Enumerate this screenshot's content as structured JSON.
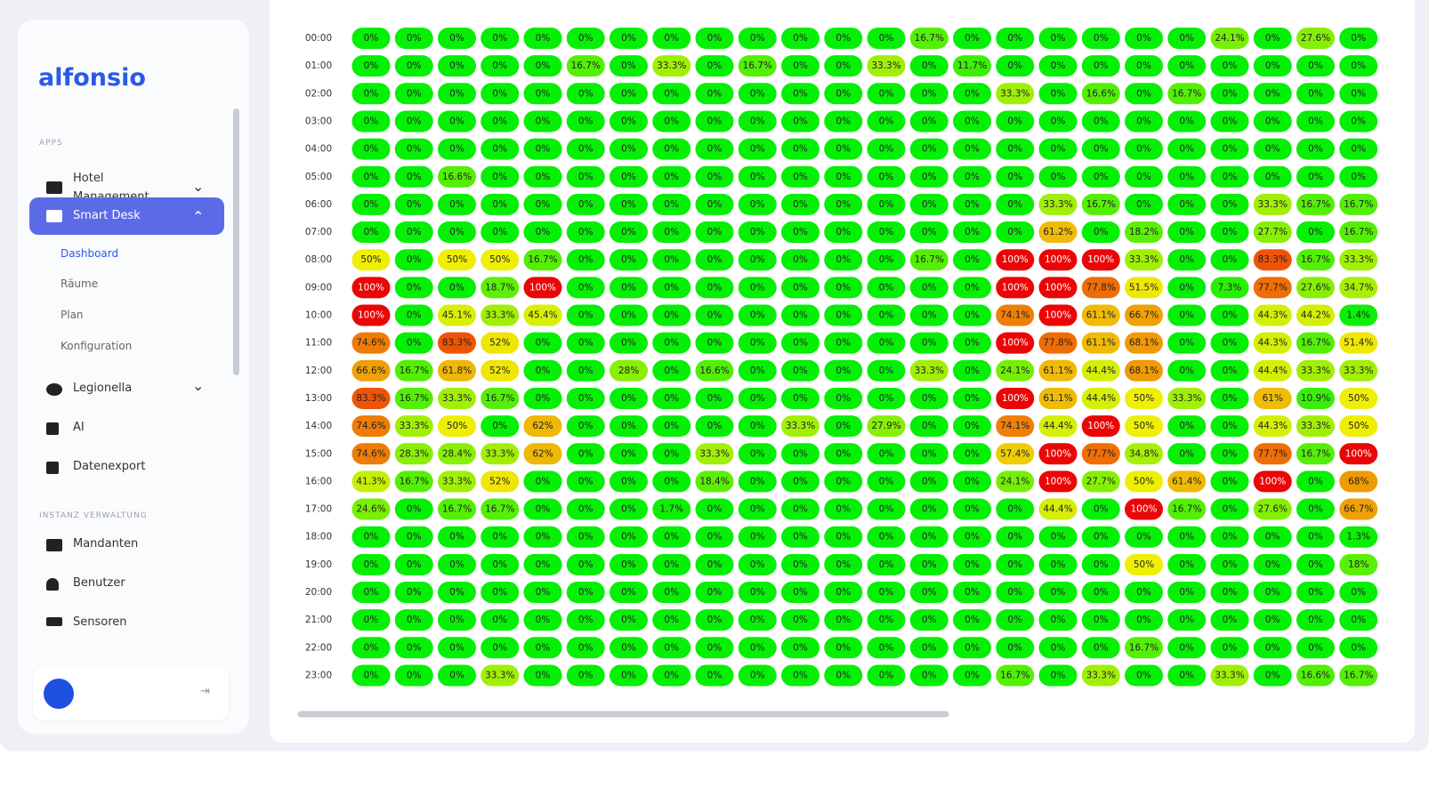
{
  "sidebar": {
    "logo": "alfonsio",
    "apps_heading": "APPS",
    "items": [
      "Hotel Management",
      "Smart Desk",
      "Legionella",
      "AI",
      "Datenexport"
    ],
    "submenu": [
      "Dashboard",
      "Räume",
      "Plan",
      "Konfiguration"
    ],
    "admin_heading": "INSTANZ VERWALTUNG",
    "admin_items": [
      "Mandanten",
      "Benutzer",
      "Sensoren"
    ]
  },
  "heatmap": {
    "hours": [
      "00:00",
      "01:00",
      "02:00",
      "03:00",
      "04:00",
      "05:00",
      "06:00",
      "07:00",
      "08:00",
      "09:00",
      "10:00",
      "11:00",
      "12:00",
      "13:00",
      "14:00",
      "15:00",
      "16:00",
      "17:00",
      "18:00",
      "19:00",
      "20:00",
      "21:00",
      "22:00",
      "23:00"
    ],
    "cells": [
      [
        "0%",
        "0%",
        "0%",
        "0%",
        "0%",
        "0%",
        "0%",
        "0%",
        "0%",
        "0%",
        "0%",
        "0%",
        "0%",
        "16.7%",
        "0%",
        "0%",
        "0%",
        "0%",
        "0%",
        "0%",
        "24.1%",
        "0%",
        "27.6%",
        "0%"
      ],
      [
        "0%",
        "0%",
        "0%",
        "0%",
        "0%",
        "16.7%",
        "0%",
        "33.3%",
        "0%",
        "16.7%",
        "0%",
        "0%",
        "33.3%",
        "0%",
        "11.7%",
        "0%",
        "0%",
        "0%",
        "0%",
        "0%",
        "0%",
        "0%",
        "0%",
        "0%"
      ],
      [
        "0%",
        "0%",
        "0%",
        "0%",
        "0%",
        "0%",
        "0%",
        "0%",
        "0%",
        "0%",
        "0%",
        "0%",
        "0%",
        "0%",
        "0%",
        "33.3%",
        "0%",
        "16.6%",
        "0%",
        "16.7%",
        "0%",
        "0%",
        "0%",
        "0%"
      ],
      [
        "0%",
        "0%",
        "0%",
        "0%",
        "0%",
        "0%",
        "0%",
        "0%",
        "0%",
        "0%",
        "0%",
        "0%",
        "0%",
        "0%",
        "0%",
        "0%",
        "0%",
        "0%",
        "0%",
        "0%",
        "0%",
        "0%",
        "0%",
        "0%"
      ],
      [
        "0%",
        "0%",
        "0%",
        "0%",
        "0%",
        "0%",
        "0%",
        "0%",
        "0%",
        "0%",
        "0%",
        "0%",
        "0%",
        "0%",
        "0%",
        "0%",
        "0%",
        "0%",
        "0%",
        "0%",
        "0%",
        "0%",
        "0%",
        "0%"
      ],
      [
        "0%",
        "0%",
        "16.6%",
        "0%",
        "0%",
        "0%",
        "0%",
        "0%",
        "0%",
        "0%",
        "0%",
        "0%",
        "0%",
        "0%",
        "0%",
        "0%",
        "0%",
        "0%",
        "0%",
        "0%",
        "0%",
        "0%",
        "0%",
        "0%"
      ],
      [
        "0%",
        "0%",
        "0%",
        "0%",
        "0%",
        "0%",
        "0%",
        "0%",
        "0%",
        "0%",
        "0%",
        "0%",
        "0%",
        "0%",
        "0%",
        "0%",
        "33.3%",
        "16.7%",
        "0%",
        "0%",
        "0%",
        "33.3%",
        "16.7%",
        "16.7%"
      ],
      [
        "0%",
        "0%",
        "0%",
        "0%",
        "0%",
        "0%",
        "0%",
        "0%",
        "0%",
        "0%",
        "0%",
        "0%",
        "0%",
        "0%",
        "0%",
        "0%",
        "61.2%",
        "0%",
        "18.2%",
        "0%",
        "0%",
        "27.7%",
        "0%",
        "16.7%"
      ],
      [
        "50%",
        "0%",
        "50%",
        "50%",
        "16.7%",
        "0%",
        "0%",
        "0%",
        "0%",
        "0%",
        "0%",
        "0%",
        "0%",
        "16.7%",
        "0%",
        "100%",
        "100%",
        "100%",
        "33.3%",
        "0%",
        "0%",
        "83.3%",
        "16.7%",
        "33.3%"
      ],
      [
        "100%",
        "0%",
        "0%",
        "18.7%",
        "100%",
        "0%",
        "0%",
        "0%",
        "0%",
        "0%",
        "0%",
        "0%",
        "0%",
        "0%",
        "0%",
        "100%",
        "100%",
        "77.8%",
        "51.5%",
        "0%",
        "7.3%",
        "77.7%",
        "27.6%",
        "34.7%"
      ],
      [
        "100%",
        "0%",
        "45.1%",
        "33.3%",
        "45.4%",
        "0%",
        "0%",
        "0%",
        "0%",
        "0%",
        "0%",
        "0%",
        "0%",
        "0%",
        "0%",
        "74.1%",
        "100%",
        "61.1%",
        "66.7%",
        "0%",
        "0%",
        "44.3%",
        "44.2%",
        "1.4%"
      ],
      [
        "74.6%",
        "0%",
        "83.3%",
        "52%",
        "0%",
        "0%",
        "0%",
        "0%",
        "0%",
        "0%",
        "0%",
        "0%",
        "0%",
        "0%",
        "0%",
        "100%",
        "77.8%",
        "61.1%",
        "68.1%",
        "0%",
        "0%",
        "44.3%",
        "16.7%",
        "51.4%"
      ],
      [
        "66.6%",
        "16.7%",
        "61.8%",
        "52%",
        "0%",
        "0%",
        "28%",
        "0%",
        "16.6%",
        "0%",
        "0%",
        "0%",
        "0%",
        "33.3%",
        "0%",
        "24.1%",
        "61.1%",
        "44.4%",
        "68.1%",
        "0%",
        "0%",
        "44.4%",
        "33.3%",
        "33.3%"
      ],
      [
        "83.3%",
        "16.7%",
        "33.3%",
        "16.7%",
        "0%",
        "0%",
        "0%",
        "0%",
        "0%",
        "0%",
        "0%",
        "0%",
        "0%",
        "0%",
        "0%",
        "100%",
        "61.1%",
        "44.4%",
        "50%",
        "33.3%",
        "0%",
        "61%",
        "10.9%",
        "50%"
      ],
      [
        "74.6%",
        "33.3%",
        "50%",
        "0%",
        "62%",
        "0%",
        "0%",
        "0%",
        "0%",
        "0%",
        "33.3%",
        "0%",
        "27.9%",
        "0%",
        "0%",
        "74.1%",
        "44.4%",
        "100%",
        "50%",
        "0%",
        "0%",
        "44.3%",
        "33.3%",
        "50%"
      ],
      [
        "74.6%",
        "28.3%",
        "28.4%",
        "33.3%",
        "62%",
        "0%",
        "0%",
        "0%",
        "33.3%",
        "0%",
        "0%",
        "0%",
        "0%",
        "0%",
        "0%",
        "57.4%",
        "100%",
        "77.7%",
        "34.8%",
        "0%",
        "0%",
        "77.7%",
        "16.7%",
        "100%"
      ],
      [
        "41.3%",
        "16.7%",
        "33.3%",
        "52%",
        "0%",
        "0%",
        "0%",
        "0%",
        "18.4%",
        "0%",
        "0%",
        "0%",
        "0%",
        "0%",
        "0%",
        "24.1%",
        "100%",
        "27.7%",
        "50%",
        "61.4%",
        "0%",
        "100%",
        "0%",
        "68%"
      ],
      [
        "24.6%",
        "0%",
        "16.7%",
        "16.7%",
        "0%",
        "0%",
        "0%",
        "1.7%",
        "0%",
        "0%",
        "0%",
        "0%",
        "0%",
        "0%",
        "0%",
        "0%",
        "44.4%",
        "0%",
        "100%",
        "16.7%",
        "0%",
        "27.6%",
        "0%",
        "66.7%"
      ],
      [
        "0%",
        "0%",
        "0%",
        "0%",
        "0%",
        "0%",
        "0%",
        "0%",
        "0%",
        "0%",
        "0%",
        "0%",
        "0%",
        "0%",
        "0%",
        "0%",
        "0%",
        "0%",
        "0%",
        "0%",
        "0%",
        "0%",
        "0%",
        "1.3%"
      ],
      [
        "0%",
        "0%",
        "0%",
        "0%",
        "0%",
        "0%",
        "0%",
        "0%",
        "0%",
        "0%",
        "0%",
        "0%",
        "0%",
        "0%",
        "0%",
        "0%",
        "0%",
        "0%",
        "50%",
        "0%",
        "0%",
        "0%",
        "0%",
        "18%"
      ],
      [
        "0%",
        "0%",
        "0%",
        "0%",
        "0%",
        "0%",
        "0%",
        "0%",
        "0%",
        "0%",
        "0%",
        "0%",
        "0%",
        "0%",
        "0%",
        "0%",
        "0%",
        "0%",
        "0%",
        "0%",
        "0%",
        "0%",
        "0%",
        "0%"
      ],
      [
        "0%",
        "0%",
        "0%",
        "0%",
        "0%",
        "0%",
        "0%",
        "0%",
        "0%",
        "0%",
        "0%",
        "0%",
        "0%",
        "0%",
        "0%",
        "0%",
        "0%",
        "0%",
        "0%",
        "0%",
        "0%",
        "0%",
        "0%",
        "0%"
      ],
      [
        "0%",
        "0%",
        "0%",
        "0%",
        "0%",
        "0%",
        "0%",
        "0%",
        "0%",
        "0%",
        "0%",
        "0%",
        "0%",
        "0%",
        "0%",
        "0%",
        "0%",
        "0%",
        "16.7%",
        "0%",
        "0%",
        "0%",
        "0%",
        "0%"
      ],
      [
        "0%",
        "0%",
        "0%",
        "33.3%",
        "0%",
        "0%",
        "0%",
        "0%",
        "0%",
        "0%",
        "0%",
        "0%",
        "0%",
        "0%",
        "0%",
        "16.7%",
        "0%",
        "33.3%",
        "0%",
        "0%",
        "33.3%",
        "0%",
        "16.6%",
        "16.7%"
      ]
    ]
  }
}
